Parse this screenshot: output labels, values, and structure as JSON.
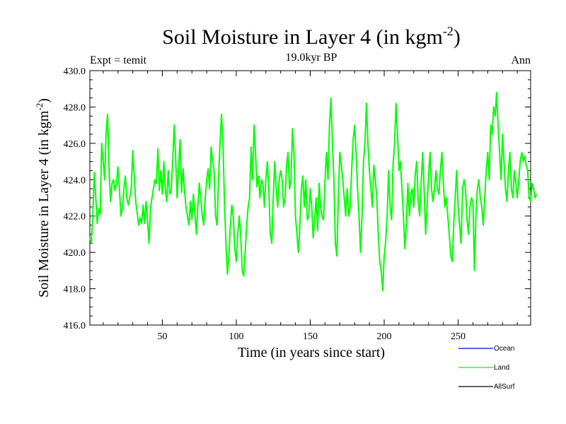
{
  "chart_data": {
    "type": "line",
    "title_main": "Soil Moisture in Layer 4 (in kgm",
    "title_sup": "-2",
    "title_close": ")",
    "expt_label": "Expt = temit",
    "period_label": "19.0kyr BP",
    "season_label": "Ann",
    "xlabel": "Time (in years since start)",
    "ylabel_main": "Soil Moisture in Layer 4 (in kgm",
    "ylabel_sup": "-2",
    "ylabel_close": ")",
    "xlim": [
      1,
      299
    ],
    "ylim": [
      416,
      430
    ],
    "x_ticks": [
      50,
      100,
      150,
      200,
      250
    ],
    "x_tick_labels": [
      "50",
      "100",
      "150",
      "200",
      "250"
    ],
    "y_ticks": [
      416,
      418,
      420,
      422,
      424,
      426,
      428,
      430
    ],
    "y_tick_labels": [
      "416.0",
      "418.0",
      "420.0",
      "422.0",
      "424.0",
      "426.0",
      "428.0",
      "430.0"
    ],
    "legend": [
      {
        "name": "Ocean",
        "color": "#0000ff"
      },
      {
        "name": "Land",
        "color": "#00ff00"
      },
      {
        "name": "AllSurf",
        "color": "#000000"
      }
    ],
    "series": [
      {
        "name": "Land",
        "color": "#00ff00",
        "x_start": 1,
        "values": [
          420.8,
          420.5,
          422.0,
          424.4,
          423.0,
          421.6,
          422.4,
          422.1,
          426.0,
          425.0,
          424.0,
          426.6,
          427.6,
          424.5,
          422.8,
          423.8,
          424.0,
          423.4,
          423.8,
          424.7,
          423.5,
          422.0,
          422.4,
          423.5,
          424.2,
          423.0,
          422.6,
          423.0,
          423.5,
          425.6,
          424.2,
          422.8,
          422.2,
          421.5,
          421.9,
          421.6,
          422.6,
          421.6,
          422.8,
          421.8,
          420.5,
          422.4,
          423.0,
          423.5,
          424.0,
          423.8,
          425.7,
          423.4,
          424.5,
          423.2,
          425.0,
          423.5,
          422.8,
          424.5,
          423.2,
          423.4,
          425.0,
          427.0,
          425.2,
          423.0,
          424.6,
          426.2,
          423.3,
          424.6,
          423.4,
          422.5,
          422.0,
          421.5,
          422.8,
          421.8,
          423.2,
          422.2,
          421.0,
          422.5,
          423.8,
          423.0,
          422.0,
          421.5,
          423.0,
          424.0,
          424.6,
          423.5,
          425.8,
          425.0,
          424.5,
          422.0,
          421.5,
          424.0,
          426.0,
          427.6,
          426.0,
          422.8,
          420.5,
          418.8,
          419.8,
          421.5,
          422.6,
          422.0,
          420.2,
          419.5,
          421.0,
          422.0,
          421.0,
          419.0,
          418.7,
          420.0,
          421.5,
          422.5,
          423.0,
          425.8,
          424.0,
          427.0,
          425.5,
          423.6,
          424.2,
          423.0,
          424.0,
          423.8,
          422.5,
          424.0,
          425.0,
          423.5,
          421.0,
          420.5,
          423.0,
          425.0,
          423.5,
          422.5,
          424.0,
          424.5,
          424.0,
          422.5,
          423.0,
          424.8,
          425.5,
          423.5,
          424.0,
          426.8,
          425.5,
          422.0,
          421.0,
          420.0,
          421.5,
          423.5,
          424.2,
          422.5,
          424.0,
          421.8,
          422.0,
          423.5,
          422.5,
          420.8,
          421.8,
          423.0,
          421.2,
          423.8,
          422.5,
          422.0,
          421.8,
          424.0,
          425.5,
          424.0,
          427.0,
          428.5,
          426.0,
          424.0,
          420.5,
          419.8,
          423.0,
          425.5,
          424.8,
          424.0,
          423.0,
          422.0,
          423.5,
          422.0,
          422.5,
          424.5,
          426.2,
          427.0,
          425.5,
          423.5,
          422.0,
          420.0,
          422.0,
          425.0,
          426.0,
          428.2,
          426.0,
          424.5,
          423.5,
          422.5,
          424.8,
          424.0,
          423.0,
          421.0,
          419.5,
          419.0,
          417.9,
          419.8,
          420.6,
          422.0,
          424.5,
          422.5,
          421.8,
          424.8,
          426.0,
          428.2,
          426.5,
          424.5,
          425.0,
          423.5,
          422.0,
          420.2,
          421.5,
          423.8,
          422.0,
          423.2,
          423.5,
          422.5,
          424.3,
          425.0,
          422.8,
          422.0,
          423.8,
          425.5,
          423.5,
          421.0,
          422.5,
          424.2,
          425.5,
          423.5,
          422.8,
          423.5,
          424.5,
          423.5,
          423.2,
          424.5,
          425.5,
          423.8,
          422.5,
          423.0,
          422.0,
          421.0,
          419.8,
          419.5,
          421.5,
          423.0,
          424.5,
          422.5,
          421.5,
          420.5,
          423.5,
          424.0,
          423.5,
          421.8,
          421.0,
          422.5,
          423.0,
          422.8,
          419.0,
          422.0,
          423.5,
          424.0,
          423.0,
          422.5,
          421.5,
          423.0,
          424.5,
          425.5,
          424.0,
          427.0,
          426.5,
          428.0,
          427.5,
          428.8,
          427.0,
          425.5,
          424.0,
          426.5,
          425.0,
          423.5,
          422.8,
          424.5,
          425.5,
          423.5,
          423.0,
          424.5,
          423.8,
          423.0,
          424.0,
          425.0,
          425.5,
          425.0,
          425.3,
          424.8,
          424.5,
          423.0,
          422.8,
          423.8,
          423.5,
          423.0,
          423.2
        ]
      }
    ]
  }
}
